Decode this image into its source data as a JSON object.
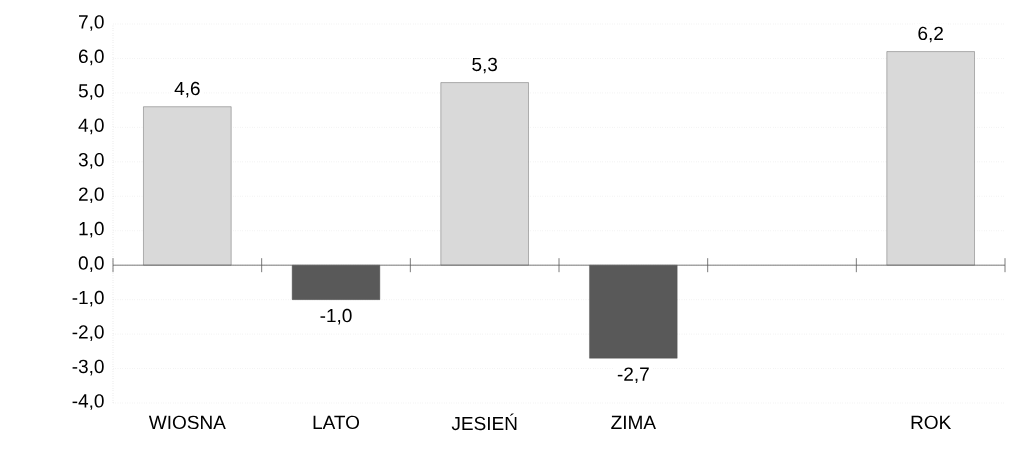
{
  "chart_data": {
    "type": "bar",
    "categories": [
      "WIOSNA",
      "LATO",
      "JESIEŃ",
      "ZIMA",
      null,
      "ROK"
    ],
    "values": [
      4.6,
      -1.0,
      5.3,
      -2.7,
      null,
      6.2
    ],
    "colors": [
      "#d9d9d9",
      "#595959",
      "#d9d9d9",
      "#595959",
      null,
      "#d9d9d9"
    ],
    "value_labels": [
      "4,6",
      "-1,0",
      "5,3",
      "-2,7",
      null,
      "6,2"
    ],
    "ylim": [
      -4,
      7
    ],
    "yticks": [
      {
        "value": -4,
        "label": "-4,0"
      },
      {
        "value": -3,
        "label": "-3,0"
      },
      {
        "value": -2,
        "label": "-2,0"
      },
      {
        "value": -1,
        "label": "-1,0"
      },
      {
        "value": 0,
        "label": "0,0"
      },
      {
        "value": 1,
        "label": "1,0"
      },
      {
        "value": 2,
        "label": "2,0"
      },
      {
        "value": 3,
        "label": "3,0"
      },
      {
        "value": 4,
        "label": "4,0"
      },
      {
        "value": 5,
        "label": "5,0"
      },
      {
        "value": 6,
        "label": "6,0"
      },
      {
        "value": 7,
        "label": "7,0"
      }
    ],
    "grid": "y"
  }
}
